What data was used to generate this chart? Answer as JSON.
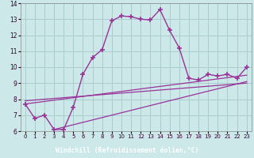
{
  "xlabel": "Windchill (Refroidissement éolien,°C)",
  "bg_color": "#cce8e8",
  "grid_color": "#aacccc",
  "line_color": "#993399",
  "xlabel_bg": "#663366",
  "xlim": [
    -0.5,
    23.5
  ],
  "ylim": [
    6,
    14
  ],
  "xticks": [
    0,
    1,
    2,
    3,
    4,
    5,
    6,
    7,
    8,
    9,
    10,
    11,
    12,
    13,
    14,
    15,
    16,
    17,
    18,
    19,
    20,
    21,
    22,
    23
  ],
  "yticks": [
    6,
    7,
    8,
    9,
    10,
    11,
    12,
    13,
    14
  ],
  "series": [
    [
      0,
      7.7
    ],
    [
      1,
      6.8
    ],
    [
      2,
      7.0
    ],
    [
      3,
      6.1
    ],
    [
      4,
      6.1
    ],
    [
      5,
      7.5
    ],
    [
      6,
      9.55
    ],
    [
      7,
      10.6
    ],
    [
      8,
      11.1
    ],
    [
      9,
      12.9
    ],
    [
      10,
      13.2
    ],
    [
      11,
      13.15
    ],
    [
      12,
      13.0
    ],
    [
      13,
      12.95
    ],
    [
      14,
      13.6
    ],
    [
      15,
      12.3
    ],
    [
      16,
      11.2
    ],
    [
      17,
      9.3
    ],
    [
      18,
      9.2
    ],
    [
      19,
      9.55
    ],
    [
      20,
      9.45
    ],
    [
      21,
      9.55
    ],
    [
      22,
      9.3
    ],
    [
      23,
      10.0
    ]
  ],
  "linear1": [
    [
      0,
      7.7
    ],
    [
      23,
      9.5
    ]
  ],
  "linear2": [
    [
      0,
      7.9
    ],
    [
      23,
      9.0
    ]
  ],
  "linear3": [
    [
      3,
      6.1
    ],
    [
      23,
      9.1
    ]
  ]
}
